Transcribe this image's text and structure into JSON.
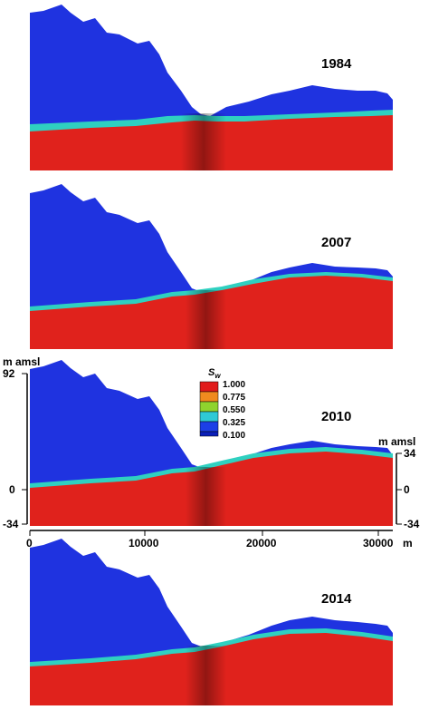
{
  "panels": [
    {
      "year": "1984"
    },
    {
      "year": "2007"
    },
    {
      "year": "2010"
    },
    {
      "year": "2014"
    }
  ],
  "legend": {
    "title_main": "S",
    "title_sub": "w",
    "values": [
      "1.000",
      "0.775",
      "0.550",
      "0.325",
      "0.100"
    ],
    "colors": [
      "#e11b1b",
      "#f08a1f",
      "#8fd32e",
      "#2fc9d6",
      "#1c3fe6",
      "#0b1fb8"
    ]
  },
  "axes": {
    "left_unit": "m amsl",
    "left_ticks": [
      "92",
      "0",
      "-34"
    ],
    "right_unit": "m amsl",
    "right_ticks": [
      "34",
      "0",
      "-34"
    ],
    "x_ticks": [
      "0",
      "10000",
      "20000",
      "30000"
    ],
    "x_unit": "m"
  },
  "colors": {
    "saturated": "#e0221c",
    "unsaturated": "#1f33e0",
    "transition": "#2fd0c0"
  }
}
